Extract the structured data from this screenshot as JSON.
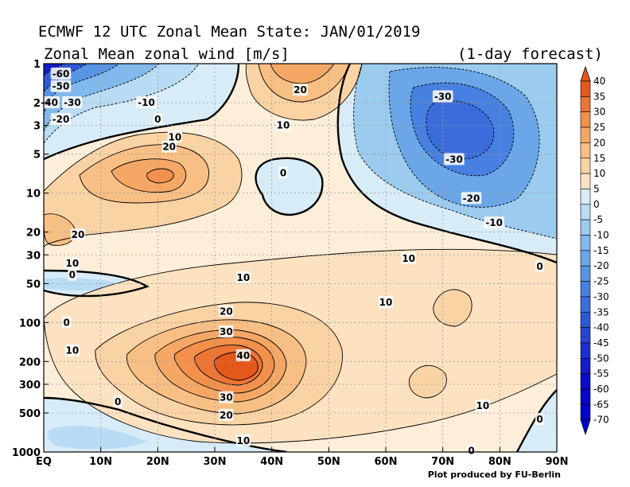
{
  "title": "ECMWF 12 UTC Zonal Mean State: JAN/01/2019",
  "subtitle": "Zonal Mean zonal wind [m/s]",
  "forecast": "(1-day forecast)",
  "credit": "Plot produced by FU-Berlin",
  "chart_data": {
    "type": "heatmap",
    "x_axis": {
      "ticks": [
        "EQ",
        "10N",
        "20N",
        "30N",
        "40N",
        "50N",
        "60N",
        "70N",
        "80N",
        "90N"
      ],
      "range": [
        0,
        90
      ]
    },
    "y_axis": {
      "ticks": [
        1,
        2,
        3,
        5,
        10,
        20,
        30,
        50,
        100,
        200,
        300,
        500,
        1000
      ],
      "range": [
        1,
        1000
      ],
      "scale": "log",
      "inverted": true
    },
    "grid": true,
    "colorbar": {
      "labels": [
        40,
        35,
        30,
        25,
        20,
        15,
        10,
        5,
        0,
        -5,
        -10,
        -15,
        -20,
        -25,
        -30,
        -35,
        -40,
        -45,
        -50,
        -55,
        -60,
        -65,
        -70
      ],
      "colors": {
        "40": "#e5581c",
        "35": "#ed7434",
        "30": "#f2904c",
        "25": "#f5a866",
        "20": "#f8bf85",
        "15": "#fad3a4",
        "10": "#fce2c1",
        "5": "#fdeed9",
        "0": "#d8ecf8",
        "-5": "#b9dcf4",
        "-10": "#9ccbf0",
        "-15": "#82b9ec",
        "-20": "#6ba7e8",
        "-25": "#5794e4",
        "-30": "#4780e0",
        "-35": "#3a6cdc",
        "-40": "#2f58d8",
        "-45": "#2544d4",
        "-50": "#1b30d0",
        "-55": "#121ccc",
        "-60": "#0a0ccb",
        "-65": "#0505cc",
        "-70": "#0000cc"
      }
    },
    "contour_labels": [
      {
        "value": -60,
        "lat": 3,
        "p": 1.2
      },
      {
        "value": -50,
        "lat": 3,
        "p": 1.5
      },
      {
        "value": -40,
        "lat": 1,
        "p": 2
      },
      {
        "value": -30,
        "lat": 5,
        "p": 2
      },
      {
        "value": -20,
        "lat": 3,
        "p": 2.7
      },
      {
        "value": -10,
        "lat": 18,
        "p": 2
      },
      {
        "value": 0,
        "lat": 20,
        "p": 2.7
      },
      {
        "value": 10,
        "lat": 23,
        "p": 3.7
      },
      {
        "value": 20,
        "lat": 22,
        "p": 4.4
      },
      {
        "value": 20,
        "lat": 6,
        "p": 21
      },
      {
        "value": 10,
        "lat": 5,
        "p": 35
      },
      {
        "value": 0,
        "lat": 5,
        "p": 43
      },
      {
        "value": 20,
        "lat": 45,
        "p": 1.6
      },
      {
        "value": 10,
        "lat": 42,
        "p": 3
      },
      {
        "value": 0,
        "lat": 42,
        "p": 7
      },
      {
        "value": -30,
        "lat": 70,
        "p": 1.8
      },
      {
        "value": -30,
        "lat": 72,
        "p": 5.5
      },
      {
        "value": -20,
        "lat": 75,
        "p": 11
      },
      {
        "value": -10,
        "lat": 79,
        "p": 17
      },
      {
        "value": 10,
        "lat": 64,
        "p": 32
      },
      {
        "value": 0,
        "lat": 87,
        "p": 37
      },
      {
        "value": 10,
        "lat": 35,
        "p": 45
      },
      {
        "value": 10,
        "lat": 60,
        "p": 70
      },
      {
        "value": 20,
        "lat": 32,
        "p": 82
      },
      {
        "value": 30,
        "lat": 32,
        "p": 118
      },
      {
        "value": 40,
        "lat": 35,
        "p": 180
      },
      {
        "value": 30,
        "lat": 32,
        "p": 380
      },
      {
        "value": 20,
        "lat": 32,
        "p": 520
      },
      {
        "value": 10,
        "lat": 35,
        "p": 820
      },
      {
        "value": 0,
        "lat": 4,
        "p": 100
      },
      {
        "value": 10,
        "lat": 5,
        "p": 165
      },
      {
        "value": 0,
        "lat": 13,
        "p": 410
      },
      {
        "value": 10,
        "lat": 77,
        "p": 440
      },
      {
        "value": 0,
        "lat": 87,
        "p": 560
      },
      {
        "value": 0,
        "lat": 75,
        "p": 980
      }
    ]
  }
}
